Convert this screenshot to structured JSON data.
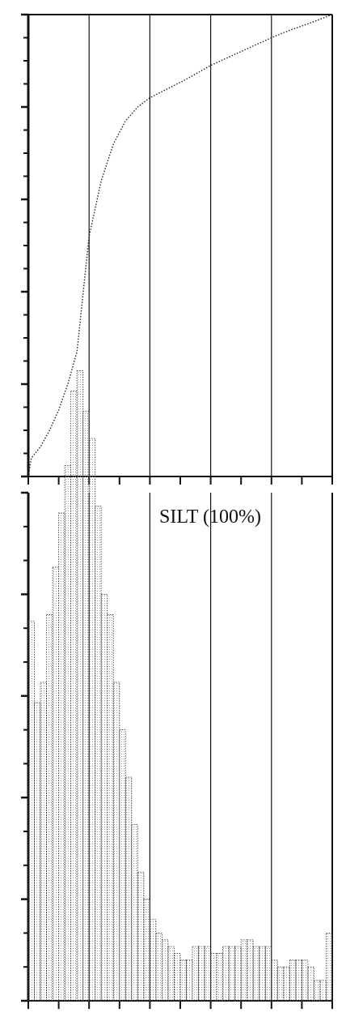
{
  "chart_data": [
    {
      "type": "line",
      "title": "",
      "xlabel": "",
      "ylabel": "",
      "xlim": [
        0,
        5
      ],
      "ylim": [
        0,
        5
      ],
      "grid": true,
      "line_style": "dotted",
      "x": [
        0,
        0.05,
        0.2,
        0.35,
        0.5,
        0.65,
        0.8,
        1.0,
        1.2,
        1.4,
        1.6,
        1.8,
        2.0,
        2.3,
        2.6,
        3.0,
        3.5,
        4.0,
        4.3,
        4.6,
        5.0
      ],
      "y": [
        0,
        0.2,
        0.32,
        0.5,
        0.72,
        1.0,
        1.35,
        2.6,
        3.2,
        3.6,
        3.85,
        4.0,
        4.1,
        4.2,
        4.3,
        4.45,
        4.6,
        4.75,
        4.83,
        4.9,
        5.0
      ]
    },
    {
      "type": "bar",
      "title": "",
      "annotation": "SILT (100%)",
      "xlabel": "",
      "ylabel": "",
      "xlim": [
        0,
        5
      ],
      "ylim": [
        0,
        7.5
      ],
      "grid": true,
      "fill_style": "dotted",
      "bin_width": 0.1,
      "values": [
        5.6,
        4.4,
        4.7,
        5.7,
        6.4,
        7.2,
        7.9,
        9.0,
        9.3,
        8.7,
        8.3,
        7.3,
        6.0,
        5.7,
        4.7,
        4.0,
        3.3,
        2.6,
        1.9,
        1.5,
        1.2,
        1.0,
        0.9,
        0.8,
        0.7,
        0.6,
        0.6,
        0.8,
        0.8,
        0.8,
        0.7,
        0.7,
        0.8,
        0.8,
        0.8,
        0.9,
        0.9,
        0.8,
        0.8,
        0.8,
        0.6,
        0.5,
        0.5,
        0.6,
        0.6,
        0.6,
        0.5,
        0.3,
        0.3,
        1.0
      ]
    }
  ]
}
